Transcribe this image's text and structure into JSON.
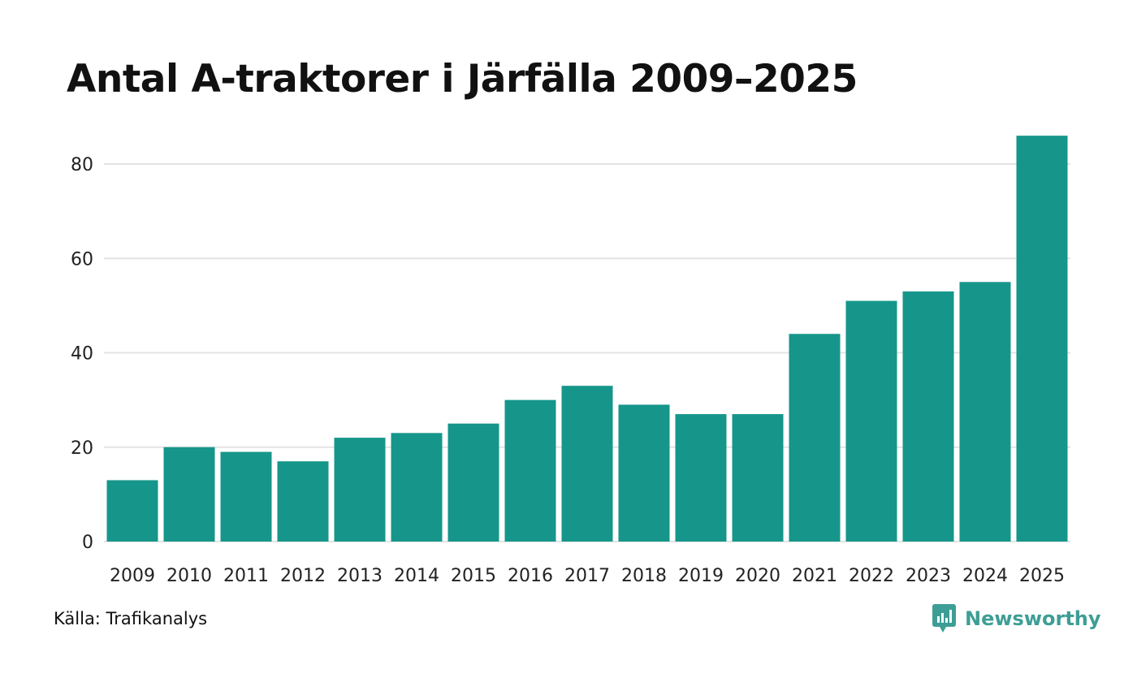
{
  "colors": {
    "bar": "#16968a",
    "grid": "#e3e3e3",
    "brand": "#3d9e95"
  },
  "chart_data": {
    "type": "bar",
    "title": "Antal A-traktorer i Järfälla 2009–2025",
    "categories": [
      "2009",
      "2010",
      "2011",
      "2012",
      "2013",
      "2014",
      "2015",
      "2016",
      "2017",
      "2018",
      "2019",
      "2020",
      "2021",
      "2022",
      "2023",
      "2024",
      "2025"
    ],
    "values": [
      13,
      20,
      19,
      17,
      22,
      23,
      25,
      30,
      33,
      29,
      27,
      27,
      44,
      51,
      53,
      55,
      86
    ],
    "yticks": [
      0,
      20,
      40,
      60,
      80
    ],
    "ylim": [
      0,
      86
    ],
    "xlabel": "",
    "ylabel": "",
    "grid": true
  },
  "footer": {
    "source": "Källa: Trafikanalys",
    "brand": "Newsworthy",
    "brand_icon": "newsworthy-logo-icon"
  }
}
